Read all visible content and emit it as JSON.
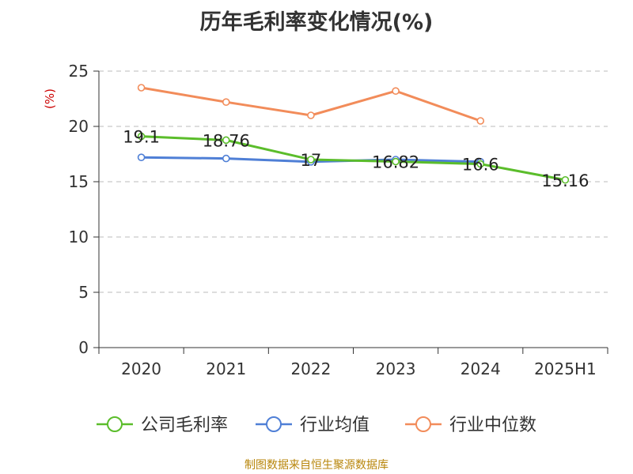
{
  "colors": {
    "company": "#5bbd2b",
    "industry_avg": "#4f7fd6",
    "industry_median": "#f28c5a",
    "ylabel": "#cc0000",
    "grid": "#bbbbbb",
    "axis": "#333333",
    "footer": "#b8860b"
  },
  "chart_data": {
    "type": "line",
    "title": "历年毛利率变化情况(%)",
    "ylabel": "(%)",
    "xlabel": "",
    "categories": [
      "2020",
      "2021",
      "2022",
      "2023",
      "2024",
      "2025H1"
    ],
    "ylim": [
      0,
      25
    ],
    "yticks": [
      0,
      5,
      10,
      15,
      20,
      25
    ],
    "grid": "horizontal dashed",
    "legend_position": "bottom",
    "series": [
      {
        "name": "公司毛利率",
        "key": "company",
        "values": [
          19.1,
          18.76,
          17,
          16.82,
          16.6,
          15.16
        ],
        "labels": [
          "19.1",
          "18.76",
          "17",
          "16.82",
          "16.6",
          "15.16"
        ]
      },
      {
        "name": "行业均值",
        "key": "industry_avg",
        "values": [
          17.2,
          17.1,
          16.8,
          17.0,
          16.8,
          null
        ]
      },
      {
        "name": "行业中位数",
        "key": "industry_median",
        "values": [
          23.5,
          22.2,
          21.0,
          23.2,
          20.5,
          null
        ]
      }
    ]
  },
  "footer": {
    "source": "制图数据来自恒生聚源数据库"
  }
}
